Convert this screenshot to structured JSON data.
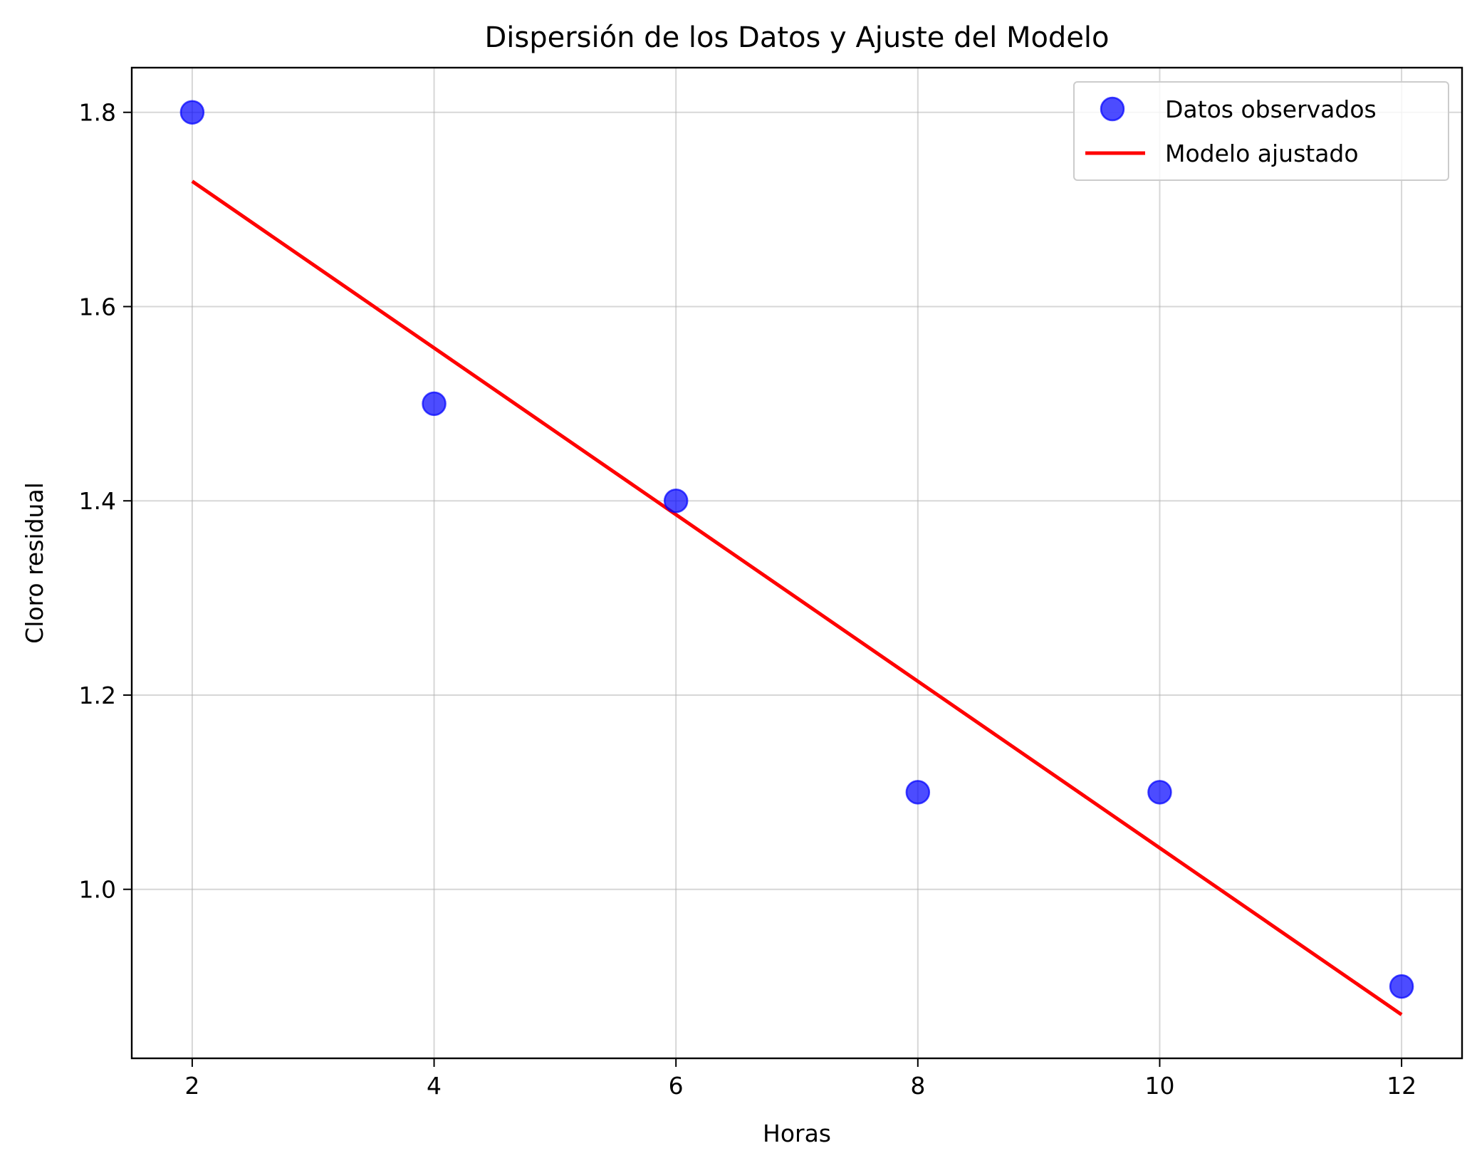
{
  "chart_data": {
    "type": "scatter",
    "title": "Dispersión de los Datos y Ajuste del Modelo",
    "xlabel": "Horas",
    "ylabel": "Cloro residual",
    "xlim": [
      1.5,
      12.5
    ],
    "ylim": [
      0.826,
      1.846
    ],
    "xticks": [
      2,
      4,
      6,
      8,
      10,
      12
    ],
    "yticks": [
      1.0,
      1.2,
      1.4,
      1.6,
      1.8
    ],
    "xtick_labels": [
      "2",
      "4",
      "6",
      "8",
      "10",
      "12"
    ],
    "ytick_labels": [
      "1.0",
      "1.2",
      "1.4",
      "1.6",
      "1.8"
    ],
    "grid": true,
    "legend_position": "top-right",
    "series": [
      {
        "name": "Datos observados",
        "kind": "scatter",
        "color": "#0000ff",
        "opacity": 0.7,
        "x": [
          2,
          4,
          6,
          8,
          10,
          12
        ],
        "y": [
          1.8,
          1.5,
          1.4,
          1.1,
          1.1,
          0.9
        ]
      },
      {
        "name": "Modelo ajustado",
        "kind": "line",
        "color": "#ff0000",
        "x": [
          2,
          12
        ],
        "y": [
          1.729,
          0.871
        ]
      }
    ]
  }
}
